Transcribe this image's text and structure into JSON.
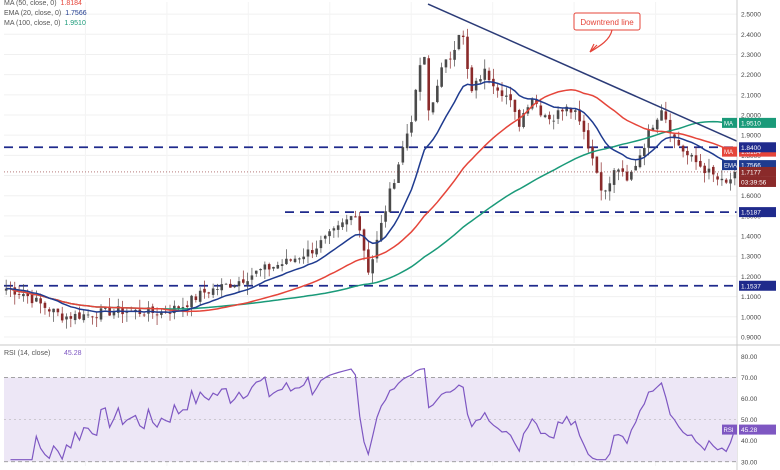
{
  "legend": [
    {
      "label": "MA (50, close, 0)",
      "value": "1.8184",
      "color": "#e5453a"
    },
    {
      "label": "EMA (20, close, 0)",
      "value": "1.7566",
      "color": "#1f3b8f"
    },
    {
      "label": "MA (100, close, 0)",
      "value": "1.9510",
      "color": "#1a9a79"
    }
  ],
  "annotation": {
    "text": "Downtrend line",
    "color": "#e5453a"
  },
  "colors": {
    "up": "#4a4a4a",
    "down": "#8a2a2a",
    "ma50": "#e5453a",
    "ema20": "#1f3b8f",
    "ma100": "#1a9a79",
    "trend": "#2b3b77",
    "level": "#1f2a8c",
    "rsi": "#7e57c2",
    "rsi_band": "#ede7f6"
  },
  "chart_data": [
    {
      "type": "candlestick",
      "ylim": [
        0.87,
        2.56
      ],
      "y_ticks": [
        "2.5000",
        "2.4000",
        "2.3000",
        "2.2000",
        "2.1000",
        "2.0000",
        "1.9000",
        "1.8000",
        "1.7000",
        "1.6000",
        "1.5000",
        "1.4000",
        "1.3000",
        "1.2000",
        "1.1000",
        "1.0000",
        "0.9000"
      ],
      "tick_values": [
        2.5,
        2.4,
        2.3,
        2.2,
        2.1,
        2.0,
        1.9,
        1.8,
        1.7,
        1.6,
        1.5,
        1.4,
        1.3,
        1.2,
        1.1,
        1.0,
        0.9
      ],
      "horizontal_levels": [
        1.84,
        1.5187,
        1.1537
      ],
      "series": [
        {
          "name": "MA",
          "value": "1.9510",
          "last": 1.951
        },
        {
          "name": "MA",
          "value": "1.8184",
          "last": 1.8184
        },
        {
          "name": "EMA",
          "value": "1.7566",
          "last": 1.7566
        }
      ],
      "price_labels": [
        {
          "text": "1.8400",
          "value": 1.84,
          "kind": "level"
        },
        {
          "text": "1.7177",
          "value": 1.7177,
          "kind": "price"
        },
        {
          "text": "03:39:56",
          "value": 1.68,
          "kind": "countdown"
        },
        {
          "text": "1.5187",
          "value": 1.5187,
          "kind": "level"
        },
        {
          "text": "1.1537",
          "value": 1.1537,
          "kind": "level"
        }
      ]
    },
    {
      "type": "line",
      "title": "RSI (14, close) 45.28",
      "title_label": "RSI (14, close)",
      "title_value": "45.28",
      "ylim": [
        28,
        84
      ],
      "y_ticks": [
        "80.00",
        "70.00",
        "60.00",
        "50.00",
        "40.00",
        "30.00"
      ],
      "tick_values": [
        80,
        70,
        60,
        50,
        40,
        30
      ],
      "bands": [
        30,
        70
      ],
      "last": {
        "label": "RSI",
        "value": "45.28",
        "y": 45.28
      }
    }
  ]
}
